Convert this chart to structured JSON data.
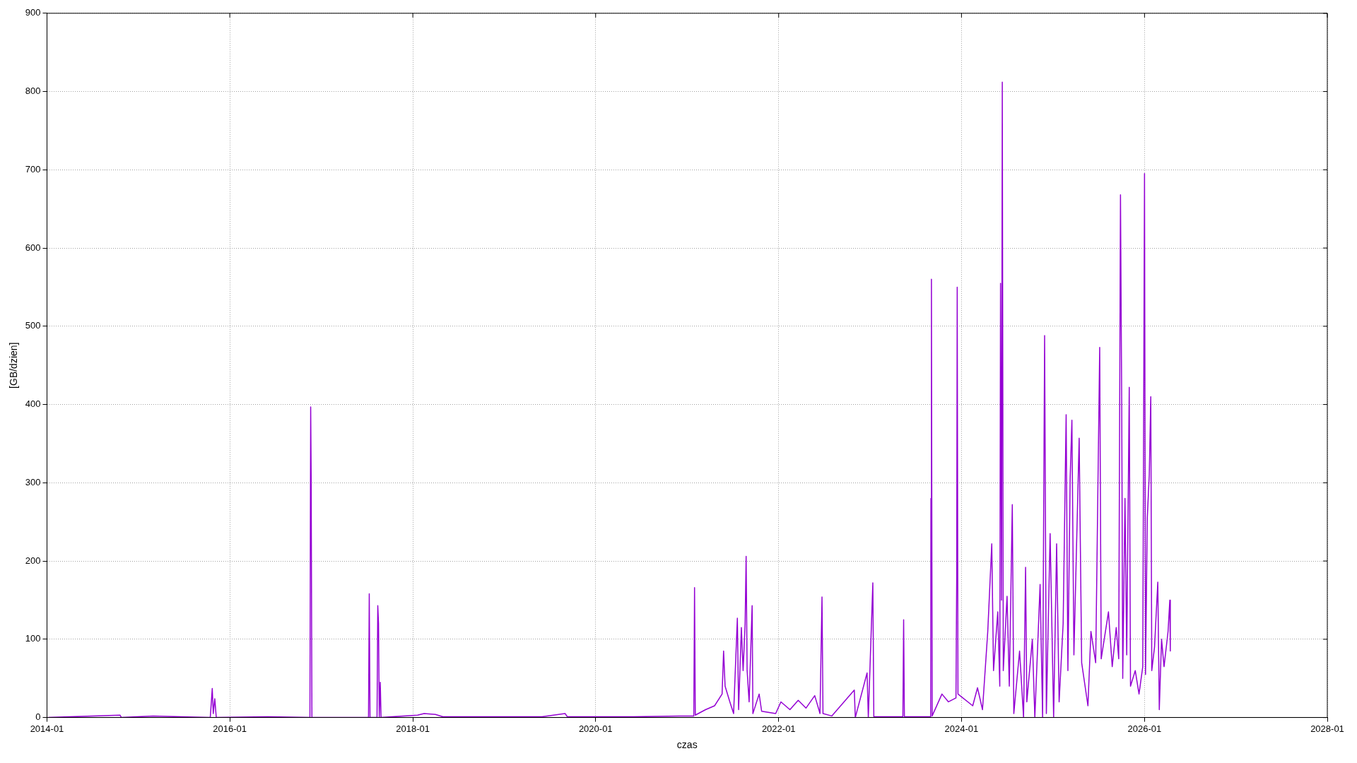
{
  "chart_data": {
    "type": "line",
    "xlabel": "czas",
    "ylabel": "[GB/dzien]",
    "xlim": [
      "2014-01",
      "2028-01"
    ],
    "xticks": [
      "2014-01",
      "2016-01",
      "2018-01",
      "2020-01",
      "2022-01",
      "2024-01",
      "2026-01",
      "2028-01"
    ],
    "ylim": [
      0,
      900
    ],
    "yticks": [
      0,
      100,
      200,
      300,
      400,
      500,
      600,
      700,
      800,
      900
    ],
    "grid": true,
    "legend": false,
    "marker": "none",
    "line_style": "solid",
    "series": [
      {
        "color": "#9400d3",
        "x": [
          "2014-01-05",
          "2014-10-20",
          "2014-10-25",
          "2015-03-01",
          "2015-10-15",
          "2015-10-23",
          "2015-10-27",
          "2015-11-02",
          "2015-11-08",
          "2016-06-01",
          "2016-11-16",
          "2016-11-19",
          "2016-11-21",
          "2016-11-24",
          "2017-07-08",
          "2017-07-11",
          "2017-07-14",
          "2017-08-11",
          "2017-08-14",
          "2017-08-17",
          "2017-08-20",
          "2017-08-24",
          "2017-08-27",
          "2018-01-20",
          "2018-02-15",
          "2018-04-01",
          "2018-05-01",
          "2019-06-01",
          "2019-09-01",
          "2019-09-10",
          "2020-06-01",
          "2020-12-01",
          "2021-01-27",
          "2021-01-30",
          "2021-02-02",
          "2021-03-15",
          "2021-04-20",
          "2021-05-20",
          "2021-05-26",
          "2021-06-01",
          "2021-06-20",
          "2021-07-05",
          "2021-07-20",
          "2021-07-25",
          "2021-08-05",
          "2021-08-12",
          "2021-08-20",
          "2021-08-24",
          "2021-08-28",
          "2021-09-05",
          "2021-09-17",
          "2021-09-20",
          "2021-10-15",
          "2021-10-25",
          "2021-12-20",
          "2022-01-10",
          "2022-02-15",
          "2022-03-20",
          "2022-04-20",
          "2022-05-25",
          "2022-06-15",
          "2022-06-23",
          "2022-06-27",
          "2022-08-01",
          "2022-10-30",
          "2022-11-03",
          "2022-12-20",
          "2022-12-25",
          "2023-01-12",
          "2023-01-16",
          "2023-05-12",
          "2023-05-15",
          "2023-05-18",
          "2023-08-31",
          "2023-09-01",
          "2023-09-03",
          "2023-09-06",
          "2023-10-15",
          "2023-11-10",
          "2023-12-10",
          "2023-12-13",
          "2023-12-15",
          "2023-12-18",
          "2024-02-15",
          "2024-03-05",
          "2024-03-25",
          "2024-04-15",
          "2024-05-01",
          "2024-05-08",
          "2024-05-25",
          "2024-06-02",
          "2024-06-05",
          "2024-06-09",
          "2024-06-12",
          "2024-06-16",
          "2024-07-01",
          "2024-07-10",
          "2024-07-22",
          "2024-07-28",
          "2024-08-20",
          "2024-09-05",
          "2024-09-13",
          "2024-09-18",
          "2024-10-10",
          "2024-10-20",
          "2024-11-10",
          "2024-11-20",
          "2024-11-28",
          "2024-12-05",
          "2024-12-20",
          "2025-01-03",
          "2025-01-15",
          "2025-01-25",
          "2025-02-10",
          "2025-02-22",
          "2025-03-01",
          "2025-03-10",
          "2025-03-17",
          "2025-03-25",
          "2025-04-15",
          "2025-04-25",
          "2025-05-20",
          "2025-06-01",
          "2025-06-20",
          "2025-07-06",
          "2025-07-12",
          "2025-08-10",
          "2025-08-25",
          "2025-09-10",
          "2025-09-20",
          "2025-09-27",
          "2025-10-02",
          "2025-10-06",
          "2025-10-15",
          "2025-10-22",
          "2025-11-01",
          "2025-11-06",
          "2025-11-25",
          "2025-12-10",
          "2025-12-25",
          "2026-01-01",
          "2026-01-05",
          "2026-01-12",
          "2026-01-20",
          "2026-01-26",
          "2026-01-30",
          "2026-02-10",
          "2026-02-23",
          "2026-03-01",
          "2026-03-10",
          "2026-03-20",
          "2026-04-05",
          "2026-04-12",
          "2026-04-14"
        ],
        "values": [
          0,
          3,
          0,
          2,
          0,
          37,
          5,
          24,
          0,
          1,
          0,
          397,
          305,
          0,
          0,
          158,
          0,
          0,
          143,
          120,
          0,
          45,
          0,
          3,
          5,
          4,
          1,
          1,
          5,
          1,
          1,
          2,
          2,
          166,
          3,
          10,
          15,
          30,
          85,
          40,
          20,
          5,
          127,
          10,
          115,
          60,
          120,
          206,
          60,
          20,
          143,
          5,
          30,
          8,
          5,
          20,
          10,
          22,
          12,
          28,
          5,
          154,
          5,
          2,
          35,
          0,
          57,
          0,
          172,
          1,
          1,
          125,
          1,
          1,
          280,
          560,
          2,
          30,
          20,
          25,
          182,
          550,
          30,
          15,
          38,
          10,
          110,
          222,
          60,
          135,
          40,
          555,
          150,
          812,
          60,
          155,
          40,
          272,
          5,
          85,
          0,
          192,
          20,
          100,
          0,
          170,
          0,
          488,
          5,
          235,
          0,
          222,
          20,
          120,
          387,
          60,
          305,
          380,
          80,
          357,
          70,
          15,
          110,
          70,
          473,
          75,
          135,
          65,
          115,
          75,
          668,
          395,
          50,
          280,
          80,
          422,
          40,
          60,
          30,
          65,
          695,
          55,
          255,
          310,
          410,
          60,
          90,
          173,
          10,
          100,
          65,
          110,
          150,
          85
        ]
      }
    ]
  }
}
